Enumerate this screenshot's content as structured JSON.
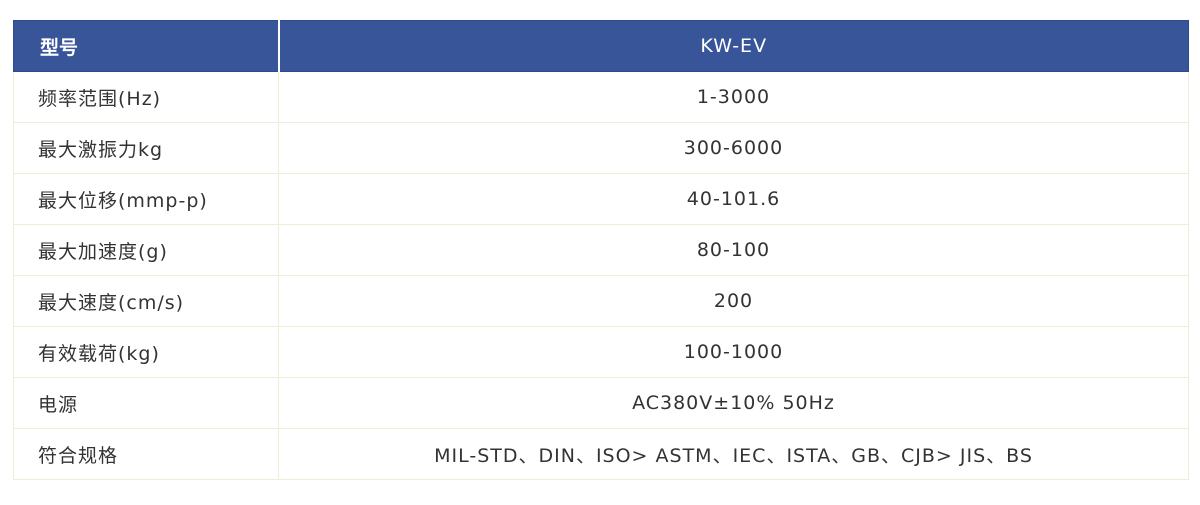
{
  "table": {
    "header": {
      "label": "型号",
      "value": "KW-EV"
    },
    "rows": [
      {
        "label": "频率范围(Hz)",
        "value": "1-3000"
      },
      {
        "label": "最大激振力kg",
        "value": "300-6000"
      },
      {
        "label": "最大位移(mmp-p)",
        "value": "40-101.6"
      },
      {
        "label": "最大加速度(g)",
        "value": "80-100"
      },
      {
        "label": "最大速度(cm/s)",
        "value": "200"
      },
      {
        "label": "有效载荷(kg)",
        "value": "100-1000"
      },
      {
        "label": "电源",
        "value": "AC380V±10% 50Hz"
      },
      {
        "label": "符合规格",
        "value": "MIL-STD、DIN、ISO> ASTM、IEC、ISTA、GB、CJB> JIS、BS"
      }
    ]
  },
  "colors": {
    "header_bg": "#38559a",
    "header_text": "#ffffff",
    "body_text": "#333333",
    "grid_line": "#f1ecd9"
  }
}
